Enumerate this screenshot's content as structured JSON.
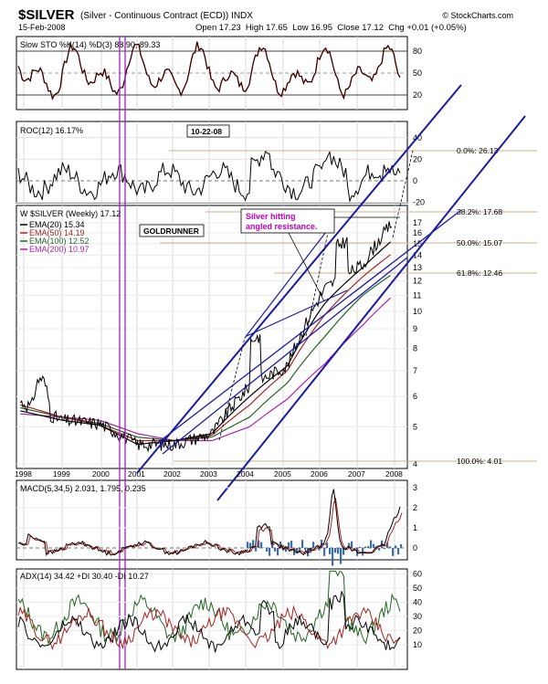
{
  "header": {
    "symbol": "$SILVER",
    "name": "(Silver - Continuous Contract (ECD)) INDX",
    "date": "15-Feb-2008",
    "credit": "© StockCharts.com",
    "ohlc": "Open 17.23  High 17.65  Low 16.95  Close 17.12  Chg +0.01 (+0.05%)"
  },
  "panels": {
    "sto": {
      "label": "Slow STO %K(14) %D(3) 88.90, 89.33",
      "ticks": [
        "80",
        "50",
        "20"
      ]
    },
    "roc": {
      "label": "ROC(12) 16.17%",
      "ticks": [
        "40",
        "20",
        "0",
        "-20"
      ],
      "annotation": "10-22-08"
    },
    "price": {
      "label": "W $SILVER (Weekly) 17.12",
      "ema": [
        {
          "label": "EMA(20) 15.34",
          "color": "#000000"
        },
        {
          "label": "EMA(50) 14.19",
          "color": "#aa2222"
        },
        {
          "label": "EMA(100) 12.52",
          "color": "#226622"
        },
        {
          "label": "EMA(200) 10.97",
          "color": "#aa22aa"
        }
      ],
      "goldrunner": "GOLDRUNNER",
      "callout_line1": "Silver hitting",
      "callout_line2": "angled resistance.",
      "ticks": [
        "17",
        "16",
        "15",
        "14",
        "13",
        "12",
        "11",
        "10",
        "9",
        "8",
        "7",
        "6",
        "5",
        "4"
      ],
      "fib": [
        "0.0%: 26.13",
        "38.2%: 17.68",
        "50.0%: 15.07",
        "61.8%: 12.46",
        "100.0%: 4.01"
      ]
    },
    "macd": {
      "label": "MACD(5,34,5) 2.031, 1.795, 0.235",
      "ticks": [
        "3",
        "2",
        "1",
        "0"
      ]
    },
    "adx": {
      "label": "ADX(14) 34.42 +DI 30.40 -DI 10.27",
      "ticks": [
        "60",
        "50",
        "40",
        "30",
        "20",
        "10"
      ]
    }
  },
  "years": [
    "1998",
    "1999",
    "2000",
    "2001",
    "2002",
    "2003",
    "2004",
    "2005",
    "2006",
    "2007",
    "2008"
  ],
  "colors": {
    "price": "#000000",
    "macd_hist": "#3a6ea5",
    "trendline": "#1a1aa8",
    "fib": "#c8b48a",
    "purple": "#a020c0",
    "callout": "#c000c0"
  },
  "chart_data": {
    "type": "line",
    "x": [
      "1998",
      "1999",
      "2000",
      "2001",
      "2002",
      "2003",
      "2004",
      "2005",
      "2006",
      "2007",
      "2008"
    ],
    "series": [
      {
        "name": "$SILVER (Weekly)",
        "values": [
          5.8,
          5.2,
          5.1,
          4.5,
          4.5,
          4.8,
          6.4,
          7.2,
          11.5,
          13.2,
          17.12
        ]
      },
      {
        "name": "EMA(20)",
        "values": [
          5.5,
          5.2,
          5.05,
          4.5,
          4.6,
          4.8,
          6.0,
          7.2,
          10.5,
          13.0,
          15.34
        ]
      },
      {
        "name": "EMA(50)",
        "values": [
          5.7,
          5.3,
          5.05,
          4.6,
          4.6,
          4.75,
          5.7,
          7.0,
          9.8,
          12.3,
          14.19
        ]
      },
      {
        "name": "EMA(100)",
        "values": [
          5.6,
          5.3,
          5.1,
          4.7,
          4.6,
          4.7,
          5.3,
          6.5,
          8.6,
          11.0,
          12.52
        ]
      },
      {
        "name": "EMA(200)",
        "values": [
          5.4,
          5.3,
          5.2,
          4.8,
          4.6,
          4.6,
          5.0,
          5.9,
          7.3,
          9.2,
          10.97
        ]
      }
    ],
    "ylim": [
      4,
      18
    ],
    "yscale": "log"
  }
}
